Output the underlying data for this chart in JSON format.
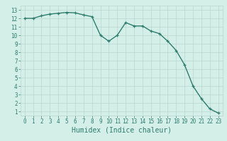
{
  "x": [
    0,
    1,
    2,
    3,
    4,
    5,
    6,
    7,
    8,
    9,
    10,
    11,
    12,
    13,
    14,
    15,
    16,
    17,
    18,
    19,
    20,
    21,
    22,
    23
  ],
  "y": [
    12,
    12,
    12.3,
    12.5,
    12.6,
    12.7,
    12.65,
    12.4,
    12.2,
    10,
    9.3,
    10,
    11.5,
    11.1,
    11.1,
    10.5,
    10.2,
    9.3,
    8.2,
    6.5,
    4,
    2.5,
    1.3,
    0.8
  ],
  "line_color": "#2e7d6e",
  "marker": "+",
  "marker_size": 3,
  "bg_color": "#d4eee8",
  "grid_color": "#b8d8d0",
  "tick_color": "#2e7d6e",
  "xlabel": "Humidex (Indice chaleur)",
  "xlabel_fontsize": 7,
  "xlim": [
    -0.5,
    23.5
  ],
  "ylim": [
    0.5,
    13.5
  ],
  "yticks": [
    1,
    2,
    3,
    4,
    5,
    6,
    7,
    8,
    9,
    10,
    11,
    12,
    13
  ],
  "xticks": [
    0,
    1,
    2,
    3,
    4,
    5,
    6,
    7,
    8,
    9,
    10,
    11,
    12,
    13,
    14,
    15,
    16,
    17,
    18,
    19,
    20,
    21,
    22,
    23
  ],
  "tick_fontsize": 5.5,
  "line_width": 1.0
}
